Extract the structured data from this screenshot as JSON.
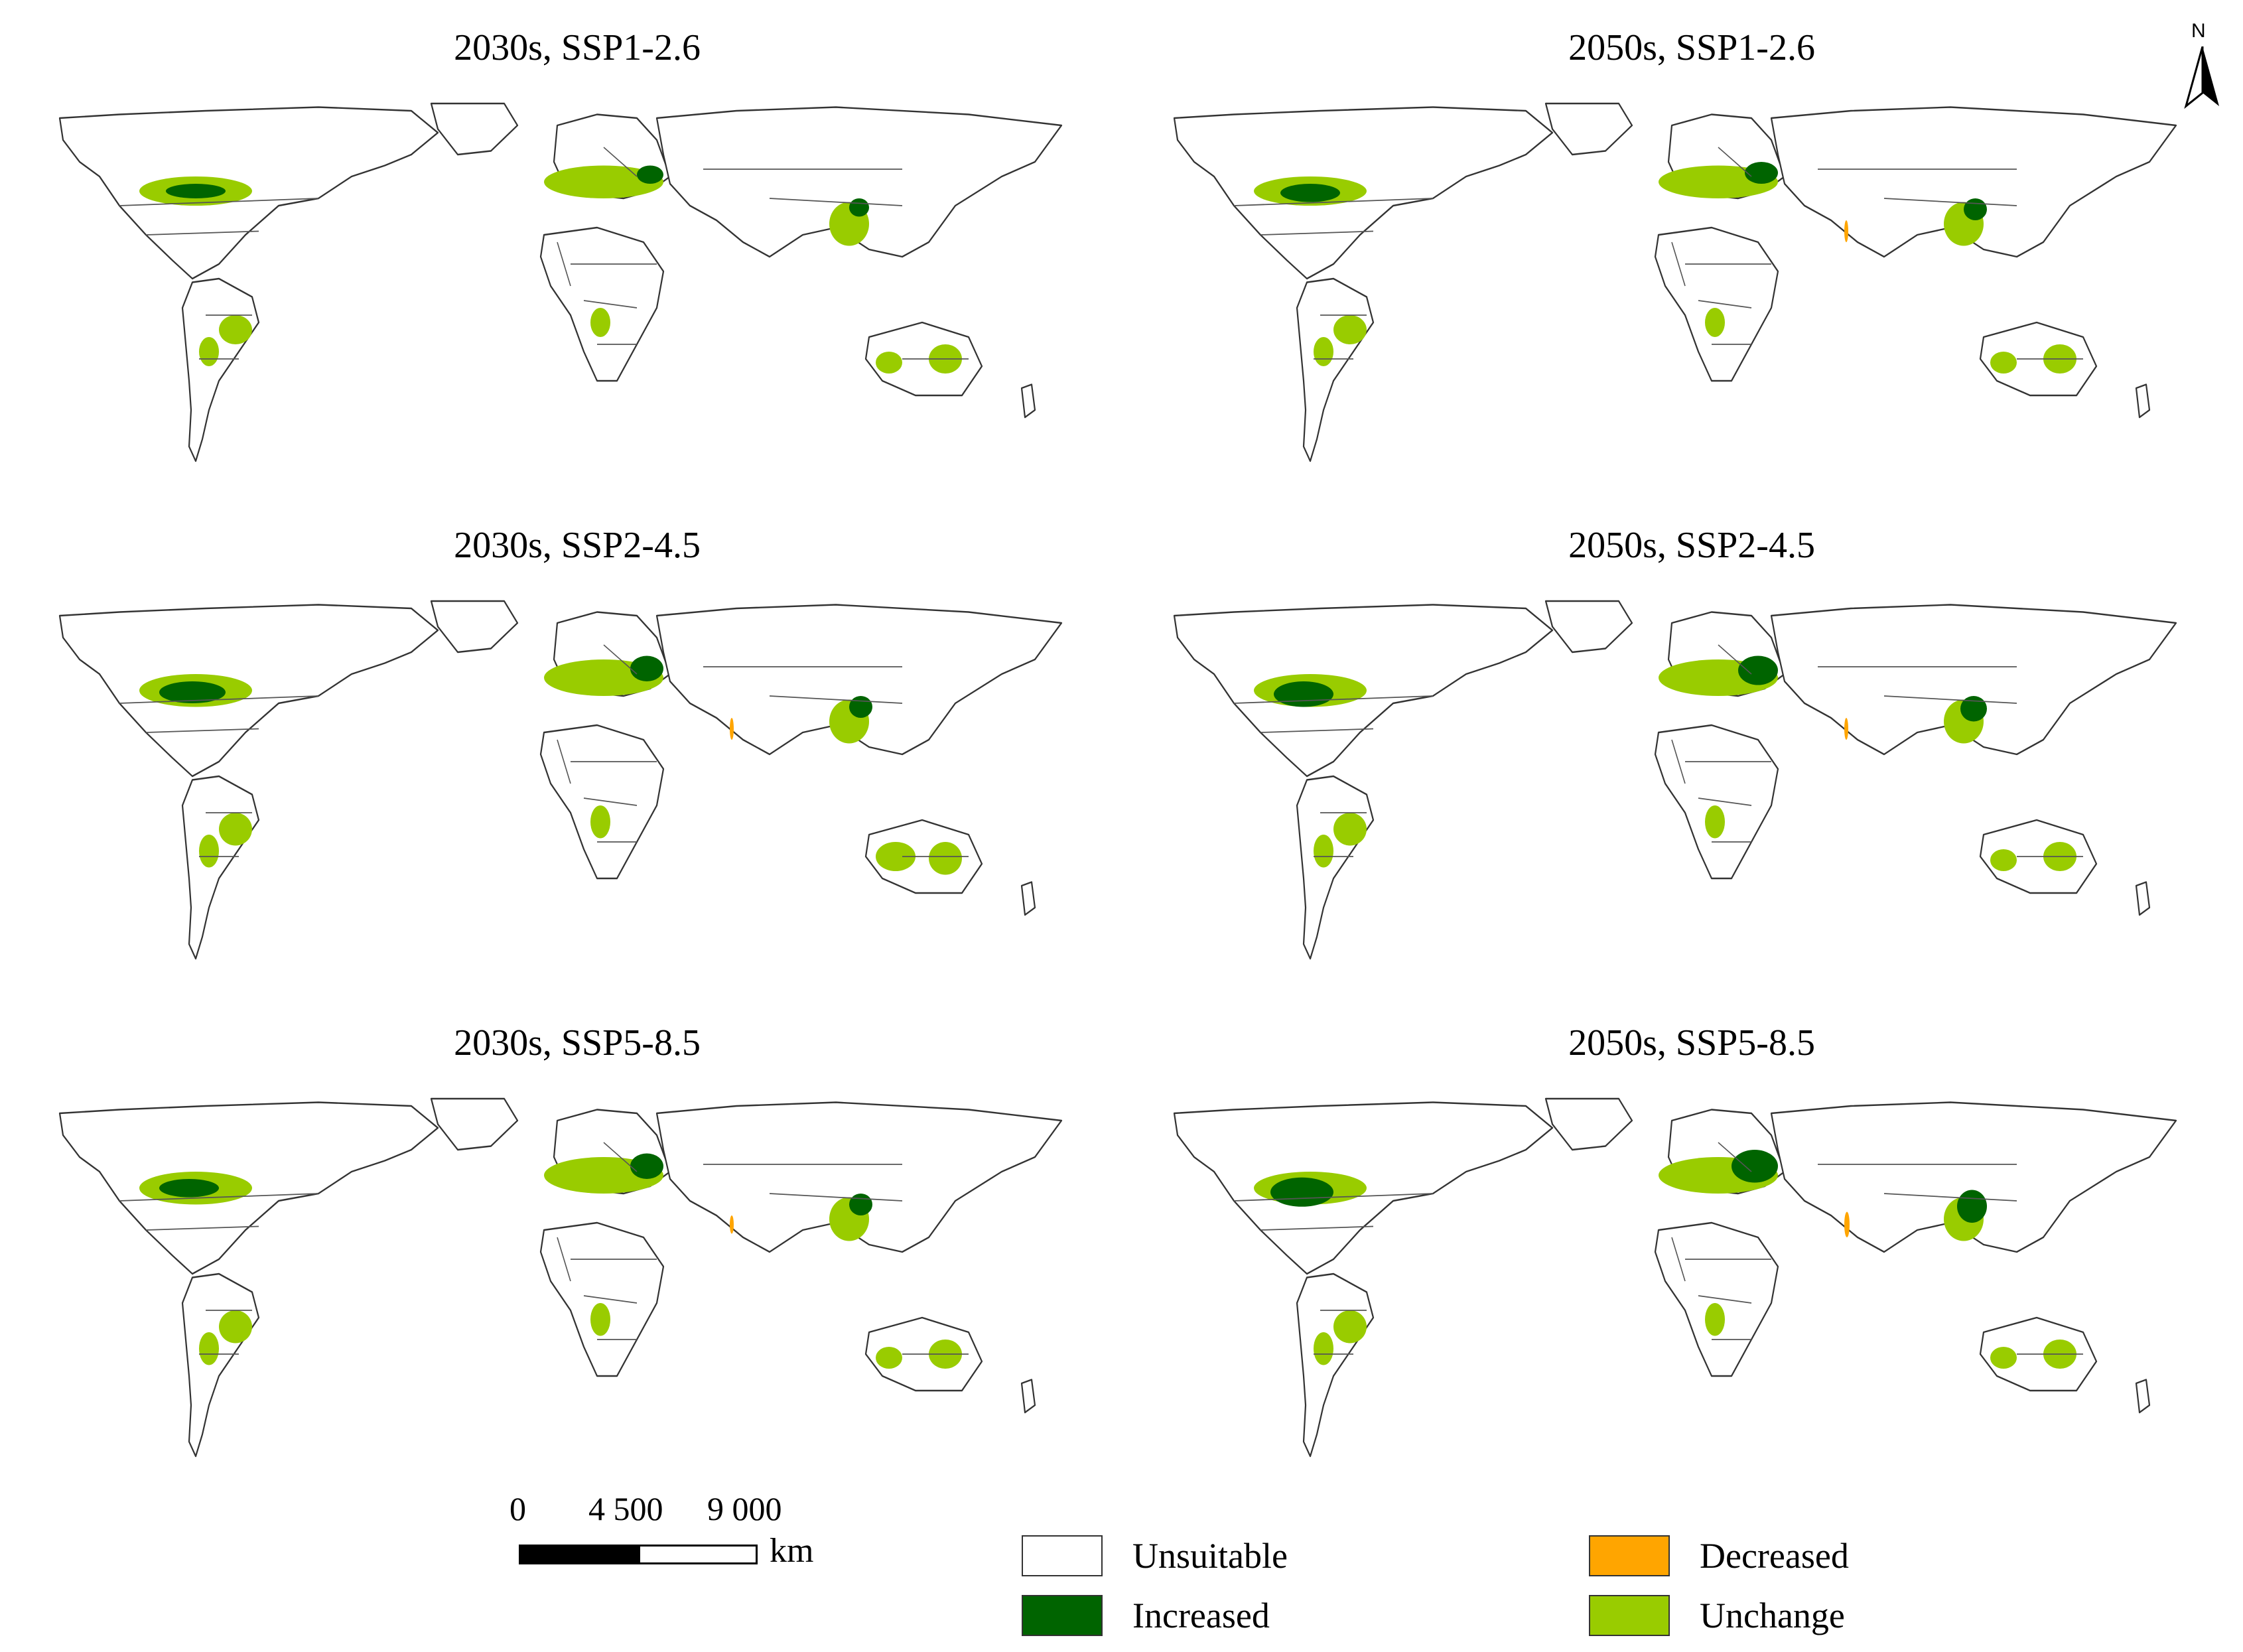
{
  "panels": [
    {
      "title": "2030s, SSP1-2.6"
    },
    {
      "title": "2050s, SSP1-2.6"
    },
    {
      "title": "2030s, SSP2-4.5"
    },
    {
      "title": "2050s, SSP2-4.5"
    },
    {
      "title": "2030s, SSP5-8.5"
    },
    {
      "title": "2050s, SSP5-8.5"
    }
  ],
  "north_arrow": {
    "label": "N"
  },
  "scale_bar": {
    "labels": [
      "0",
      "4 500",
      "9 000"
    ],
    "unit": "km"
  },
  "legend": [
    {
      "label": "Unsuitable",
      "color": "#ffffff"
    },
    {
      "label": "Decreased",
      "color": "#ffa500"
    },
    {
      "label": "Increased",
      "color": "#006400"
    },
    {
      "label": "Unchange",
      "color": "#99cc00"
    }
  ],
  "colors": {
    "unchange": "#99cc00",
    "increased": "#006400",
    "decreased": "#ffa500",
    "land_outline": "#333333"
  }
}
